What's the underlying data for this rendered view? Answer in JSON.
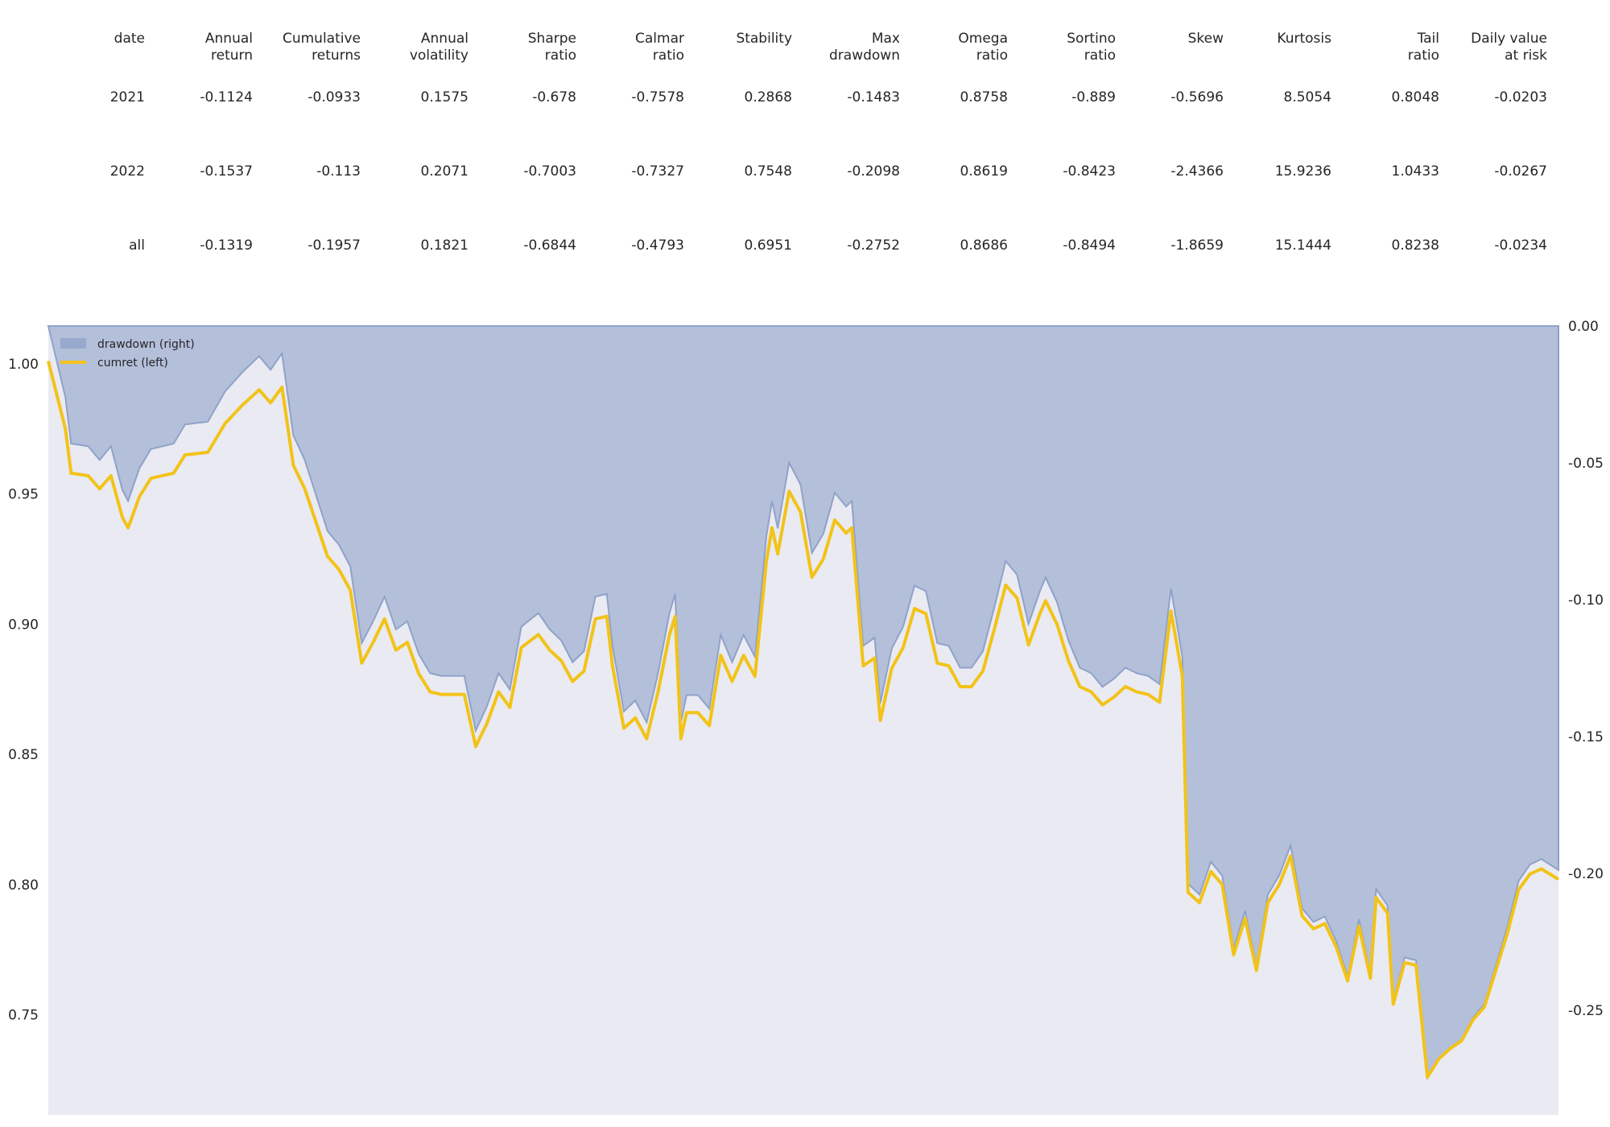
{
  "table": {
    "headers": [
      "date",
      "Annual\nreturn",
      "Cumulative\nreturns",
      "Annual\nvolatility",
      "Sharpe\nratio",
      "Calmar\nratio",
      "Stability",
      "Max\ndrawdown",
      "Omega\nratio",
      "Sortino\nratio",
      "Skew",
      "Kurtosis",
      "Tail\nratio",
      "Daily value\nat risk"
    ],
    "rows": [
      [
        "2021",
        "-0.1124",
        "-0.0933",
        "0.1575",
        "-0.678",
        "-0.7578",
        "0.2868",
        "-0.1483",
        "0.8758",
        "-0.889",
        "-0.5696",
        "8.5054",
        "0.8048",
        "-0.0203"
      ],
      [
        "2022",
        "-0.1537",
        "-0.113",
        "0.2071",
        "-0.7003",
        "-0.7327",
        "0.7548",
        "-0.2098",
        "0.8619",
        "-0.8423",
        "-2.4366",
        "15.9236",
        "1.0433",
        "-0.0267"
      ],
      [
        "all",
        "-0.1319",
        "-0.1957",
        "0.1821",
        "-0.6844",
        "-0.4793",
        "0.6951",
        "-0.2752",
        "0.8686",
        "-0.8494",
        "-1.8659",
        "15.1444",
        "0.8238",
        "-0.0234"
      ]
    ]
  },
  "chart_data": {
    "type": "line",
    "series": [
      {
        "name": "drawdown (right)",
        "type": "area",
        "axis": "right",
        "color": "#8fa2c9"
      },
      {
        "name": "cumret (left)",
        "type": "line",
        "axis": "left",
        "color": "#f2c318"
      }
    ],
    "left_axis": {
      "ylim": [
        0.7115,
        1.0145
      ],
      "ticks": [
        "0.75",
        "0.80",
        "0.85",
        "0.90",
        "0.95",
        "1.00"
      ]
    },
    "right_axis": {
      "ylim": [
        -0.2883,
        0.0
      ],
      "ticks": [
        "0.00",
        "-0.05",
        "-0.10",
        "-0.15",
        "-0.20",
        "-0.25"
      ]
    },
    "grid": false,
    "legend": "top-left",
    "cumret_keypoints": [
      [
        0,
        1.001
      ],
      [
        3,
        0.975
      ],
      [
        4,
        0.958
      ],
      [
        7,
        0.957
      ],
      [
        9,
        0.952
      ],
      [
        11,
        0.957
      ],
      [
        13,
        0.941
      ],
      [
        14,
        0.937
      ],
      [
        16,
        0.949
      ],
      [
        18,
        0.956
      ],
      [
        22,
        0.958
      ],
      [
        24,
        0.965
      ],
      [
        28,
        0.966
      ],
      [
        31,
        0.977
      ],
      [
        34,
        0.984
      ],
      [
        37,
        0.99
      ],
      [
        39,
        0.985
      ],
      [
        41,
        0.991
      ],
      [
        43,
        0.961
      ],
      [
        45,
        0.952
      ],
      [
        47,
        0.939
      ],
      [
        49,
        0.926
      ],
      [
        51,
        0.921
      ],
      [
        53,
        0.913
      ],
      [
        55,
        0.885
      ],
      [
        57,
        0.893
      ],
      [
        59,
        0.902
      ],
      [
        61,
        0.89
      ],
      [
        63,
        0.893
      ],
      [
        65,
        0.881
      ],
      [
        67,
        0.874
      ],
      [
        69,
        0.873
      ],
      [
        71,
        0.873
      ],
      [
        73,
        0.873
      ],
      [
        75,
        0.853
      ],
      [
        77,
        0.862
      ],
      [
        79,
        0.874
      ],
      [
        81,
        0.868
      ],
      [
        83,
        0.891
      ],
      [
        86,
        0.896
      ],
      [
        88,
        0.89
      ],
      [
        90,
        0.886
      ],
      [
        92,
        0.878
      ],
      [
        94,
        0.882
      ],
      [
        96,
        0.902
      ],
      [
        98,
        0.903
      ],
      [
        99,
        0.884
      ],
      [
        101,
        0.86
      ],
      [
        103,
        0.864
      ],
      [
        105,
        0.856
      ],
      [
        107,
        0.874
      ],
      [
        109,
        0.896
      ],
      [
        110,
        0.903
      ],
      [
        111,
        0.856
      ],
      [
        112,
        0.866
      ],
      [
        114,
        0.866
      ],
      [
        116,
        0.861
      ],
      [
        118,
        0.888
      ],
      [
        120,
        0.878
      ],
      [
        122,
        0.888
      ],
      [
        124,
        0.88
      ],
      [
        126,
        0.924
      ],
      [
        127,
        0.937
      ],
      [
        128,
        0.927
      ],
      [
        130,
        0.951
      ],
      [
        132,
        0.943
      ],
      [
        134,
        0.918
      ],
      [
        136,
        0.925
      ],
      [
        138,
        0.94
      ],
      [
        140,
        0.935
      ],
      [
        141,
        0.937
      ],
      [
        143,
        0.884
      ],
      [
        145,
        0.887
      ],
      [
        146,
        0.863
      ],
      [
        148,
        0.883
      ],
      [
        150,
        0.891
      ],
      [
        152,
        0.906
      ],
      [
        154,
        0.904
      ],
      [
        156,
        0.885
      ],
      [
        158,
        0.884
      ],
      [
        160,
        0.876
      ],
      [
        162,
        0.876
      ],
      [
        164,
        0.882
      ],
      [
        166,
        0.898
      ],
      [
        168,
        0.915
      ],
      [
        170,
        0.91
      ],
      [
        172,
        0.892
      ],
      [
        174,
        0.904
      ],
      [
        175,
        0.909
      ],
      [
        177,
        0.9
      ],
      [
        179,
        0.886
      ],
      [
        181,
        0.876
      ],
      [
        183,
        0.874
      ],
      [
        185,
        0.869
      ],
      [
        187,
        0.872
      ],
      [
        189,
        0.876
      ],
      [
        191,
        0.874
      ],
      [
        193,
        0.873
      ],
      [
        195,
        0.87
      ],
      [
        197,
        0.905
      ],
      [
        199,
        0.88
      ],
      [
        200,
        0.797
      ],
      [
        202,
        0.793
      ],
      [
        204,
        0.805
      ],
      [
        206,
        0.8
      ],
      [
        208,
        0.773
      ],
      [
        210,
        0.787
      ],
      [
        212,
        0.767
      ],
      [
        214,
        0.793
      ],
      [
        216,
        0.8
      ],
      [
        218,
        0.811
      ],
      [
        220,
        0.788
      ],
      [
        222,
        0.783
      ],
      [
        224,
        0.785
      ],
      [
        226,
        0.776
      ],
      [
        228,
        0.763
      ],
      [
        230,
        0.784
      ],
      [
        232,
        0.764
      ],
      [
        233,
        0.795
      ],
      [
        235,
        0.789
      ],
      [
        236,
        0.754
      ],
      [
        238,
        0.77
      ],
      [
        240,
        0.769
      ],
      [
        242,
        0.726
      ],
      [
        244,
        0.733
      ],
      [
        246,
        0.737
      ],
      [
        248,
        0.74
      ],
      [
        250,
        0.748
      ],
      [
        252,
        0.753
      ],
      [
        254,
        0.767
      ],
      [
        256,
        0.781
      ],
      [
        258,
        0.798
      ],
      [
        260,
        0.804
      ],
      [
        262,
        0.806
      ],
      [
        265,
        0.802
      ]
    ]
  }
}
